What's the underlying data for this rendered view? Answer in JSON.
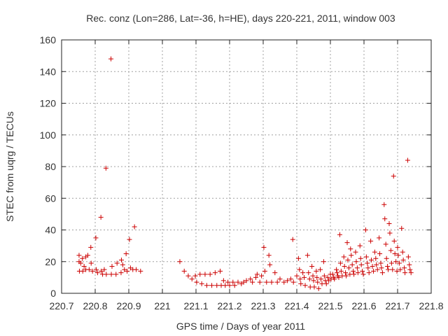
{
  "chart_data": {
    "type": "scatter",
    "title": "Rec. conz (Lon=286, Lat=-36, h=HE), days 220-221, 2011, window 003",
    "xlabel": "GPS time / Days of year 2011",
    "ylabel": "STEC from uqrg / TECUs",
    "xlim": [
      220.7,
      221.8
    ],
    "ylim": [
      0,
      160
    ],
    "xticks": [
      220.7,
      220.8,
      220.9,
      221.0,
      221.1,
      221.2,
      221.3,
      221.4,
      221.5,
      221.6,
      221.7,
      221.8
    ],
    "xtick_labels": [
      "220.7",
      "220.8",
      "220.9",
      "221",
      "221.1",
      "221.2",
      "221.3",
      "221.4",
      "221.5",
      "221.6",
      "221.7",
      "221.8"
    ],
    "yticks": [
      0,
      20,
      40,
      60,
      80,
      100,
      120,
      140,
      160
    ],
    "ytick_labels": [
      "0",
      "20",
      "40",
      "60",
      "80",
      "100",
      "120",
      "140",
      "160"
    ],
    "grid": true,
    "marker": "+",
    "marker_color": "#cc0000",
    "points": [
      [
        220.752,
        24
      ],
      [
        220.752,
        20
      ],
      [
        220.753,
        14
      ],
      [
        220.757,
        19
      ],
      [
        220.762,
        22
      ],
      [
        220.763,
        14
      ],
      [
        220.767,
        17
      ],
      [
        220.772,
        23
      ],
      [
        220.772,
        15
      ],
      [
        220.778,
        24
      ],
      [
        220.782,
        15
      ],
      [
        220.787,
        29
      ],
      [
        220.788,
        19
      ],
      [
        220.792,
        14
      ],
      [
        220.802,
        35
      ],
      [
        220.803,
        15
      ],
      [
        220.807,
        13
      ],
      [
        220.817,
        48
      ],
      [
        220.818,
        14
      ],
      [
        220.822,
        12
      ],
      [
        220.827,
        15
      ],
      [
        220.832,
        79
      ],
      [
        220.833,
        12
      ],
      [
        220.847,
        148
      ],
      [
        220.848,
        12
      ],
      [
        220.85,
        17
      ],
      [
        220.862,
        12
      ],
      [
        220.865,
        19
      ],
      [
        220.877,
        13
      ],
      [
        220.878,
        21
      ],
      [
        220.882,
        18
      ],
      [
        220.887,
        15
      ],
      [
        220.892,
        25
      ],
      [
        220.895,
        14
      ],
      [
        220.902,
        34
      ],
      [
        220.905,
        16
      ],
      [
        220.912,
        15
      ],
      [
        220.917,
        42
      ],
      [
        220.922,
        15
      ],
      [
        220.935,
        14
      ],
      [
        221.052,
        20
      ],
      [
        221.065,
        14
      ],
      [
        221.077,
        11
      ],
      [
        221.088,
        9
      ],
      [
        221.098,
        11
      ],
      [
        221.102,
        7
      ],
      [
        221.112,
        12
      ],
      [
        221.117,
        6
      ],
      [
        221.127,
        12
      ],
      [
        221.132,
        5
      ],
      [
        221.142,
        12
      ],
      [
        221.147,
        5
      ],
      [
        221.157,
        13
      ],
      [
        221.162,
        5
      ],
      [
        221.172,
        14
      ],
      [
        221.175,
        5
      ],
      [
        221.182,
        8
      ],
      [
        221.187,
        5
      ],
      [
        221.195,
        7
      ],
      [
        221.2,
        5
      ],
      [
        221.21,
        7
      ],
      [
        221.215,
        5
      ],
      [
        221.225,
        7
      ],
      [
        221.235,
        6
      ],
      [
        221.242,
        7
      ],
      [
        221.25,
        8
      ],
      [
        221.262,
        9
      ],
      [
        221.268,
        7
      ],
      [
        221.278,
        10
      ],
      [
        221.282,
        12
      ],
      [
        221.29,
        7
      ],
      [
        221.295,
        11
      ],
      [
        221.302,
        29
      ],
      [
        221.305,
        14
      ],
      [
        221.31,
        7
      ],
      [
        221.317,
        24
      ],
      [
        221.32,
        18
      ],
      [
        221.325,
        7
      ],
      [
        221.335,
        13
      ],
      [
        221.342,
        7
      ],
      [
        221.35,
        9
      ],
      [
        221.362,
        7
      ],
      [
        221.372,
        8
      ],
      [
        221.382,
        9
      ],
      [
        221.388,
        34
      ],
      [
        221.39,
        7
      ],
      [
        221.4,
        11
      ],
      [
        221.405,
        22
      ],
      [
        221.408,
        15
      ],
      [
        221.41,
        9
      ],
      [
        221.412,
        6
      ],
      [
        221.418,
        13
      ],
      [
        221.422,
        10
      ],
      [
        221.425,
        5
      ],
      [
        221.432,
        24
      ],
      [
        221.435,
        13
      ],
      [
        221.438,
        9
      ],
      [
        221.44,
        4
      ],
      [
        221.445,
        17
      ],
      [
        221.448,
        11
      ],
      [
        221.45,
        8
      ],
      [
        221.452,
        4
      ],
      [
        221.458,
        14
      ],
      [
        221.46,
        10
      ],
      [
        221.462,
        7
      ],
      [
        221.465,
        3
      ],
      [
        221.47,
        15
      ],
      [
        221.472,
        9
      ],
      [
        221.475,
        6
      ],
      [
        221.48,
        20
      ],
      [
        221.482,
        11
      ],
      [
        221.485,
        8
      ],
      [
        221.488,
        6
      ],
      [
        221.492,
        10
      ],
      [
        221.495,
        8
      ],
      [
        221.5,
        12
      ],
      [
        221.502,
        9
      ],
      [
        221.507,
        12
      ],
      [
        221.51,
        10
      ],
      [
        221.512,
        9
      ],
      [
        221.518,
        15
      ],
      [
        221.52,
        13
      ],
      [
        221.522,
        11
      ],
      [
        221.525,
        10
      ],
      [
        221.528,
        37
      ],
      [
        221.53,
        19
      ],
      [
        221.532,
        14
      ],
      [
        221.535,
        11
      ],
      [
        221.54,
        23
      ],
      [
        221.542,
        17
      ],
      [
        221.545,
        13
      ],
      [
        221.547,
        11
      ],
      [
        221.55,
        32
      ],
      [
        221.552,
        21
      ],
      [
        221.555,
        16
      ],
      [
        221.558,
        12
      ],
      [
        221.56,
        28
      ],
      [
        221.562,
        24
      ],
      [
        221.565,
        18
      ],
      [
        221.568,
        14
      ],
      [
        221.57,
        12
      ],
      [
        221.575,
        26
      ],
      [
        221.577,
        20
      ],
      [
        221.58,
        16
      ],
      [
        221.582,
        13
      ],
      [
        221.588,
        30
      ],
      [
        221.59,
        22
      ],
      [
        221.592,
        18
      ],
      [
        221.595,
        14
      ],
      [
        221.598,
        12
      ],
      [
        221.605,
        40
      ],
      [
        221.607,
        23
      ],
      [
        221.61,
        19
      ],
      [
        221.612,
        16
      ],
      [
        221.615,
        13
      ],
      [
        221.62,
        33
      ],
      [
        221.622,
        21
      ],
      [
        221.625,
        17
      ],
      [
        221.628,
        14
      ],
      [
        221.632,
        26
      ],
      [
        221.635,
        22
      ],
      [
        221.637,
        18
      ],
      [
        221.64,
        15
      ],
      [
        221.645,
        35
      ],
      [
        221.647,
        25
      ],
      [
        221.65,
        19
      ],
      [
        221.652,
        16
      ],
      [
        221.655,
        13
      ],
      [
        221.66,
        56
      ],
      [
        221.662,
        47
      ],
      [
        221.665,
        31
      ],
      [
        221.667,
        22
      ],
      [
        221.67,
        17
      ],
      [
        221.672,
        15
      ],
      [
        221.675,
        44
      ],
      [
        221.677,
        38
      ],
      [
        221.68,
        27
      ],
      [
        221.682,
        19
      ],
      [
        221.685,
        15
      ],
      [
        221.688,
        74
      ],
      [
        221.69,
        33
      ],
      [
        221.692,
        25
      ],
      [
        221.695,
        20
      ],
      [
        221.698,
        14
      ],
      [
        221.7,
        29
      ],
      [
        221.702,
        24
      ],
      [
        221.705,
        19
      ],
      [
        221.708,
        15
      ],
      [
        221.712,
        41
      ],
      [
        221.715,
        26
      ],
      [
        221.717,
        21
      ],
      [
        221.72,
        16
      ],
      [
        221.722,
        13
      ],
      [
        221.73,
        84
      ],
      [
        221.732,
        23
      ],
      [
        221.735,
        18
      ],
      [
        221.737,
        15
      ],
      [
        221.74,
        13
      ]
    ]
  }
}
